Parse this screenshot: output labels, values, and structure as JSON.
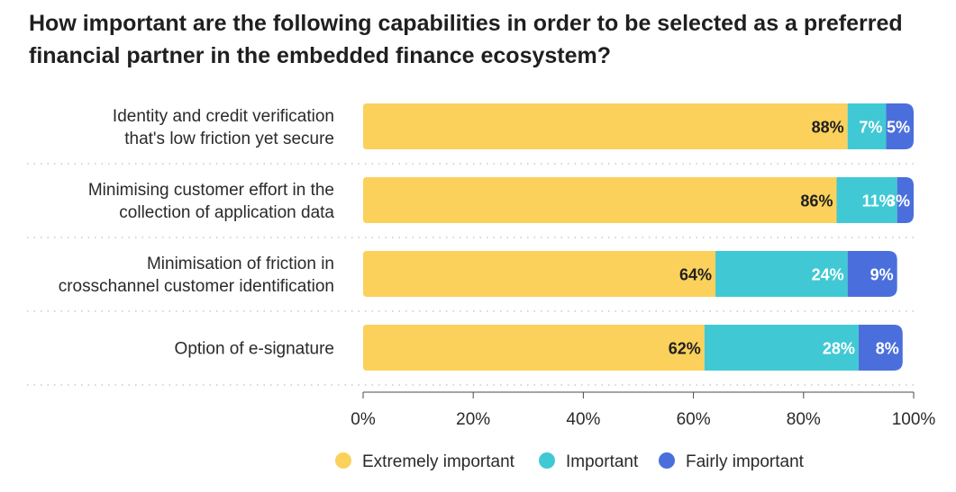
{
  "chart_data": {
    "type": "bar",
    "orientation": "horizontal",
    "stacked": true,
    "title": "How important are the following capabilities in order to be selected as a preferred financial partner in the embedded finance ecosystem?",
    "categories": [
      [
        "Identity and credit verification",
        "that's low friction yet secure"
      ],
      [
        "Minimising customer effort in the",
        "collection of application data"
      ],
      [
        "Minimisation of friction in",
        "crosschannel customer identification"
      ],
      [
        "Option of e-signature"
      ]
    ],
    "series": [
      {
        "name": "Extremely important",
        "color": "#fbd15b",
        "label_color": "#1f1f1f",
        "values": [
          88,
          86,
          64,
          62
        ]
      },
      {
        "name": "Important",
        "color": "#40c9d4",
        "label_color": "#ffffff",
        "values": [
          7,
          11,
          24,
          28
        ]
      },
      {
        "name": "Fairly important",
        "color": "#4a6fdc",
        "label_color": "#ffffff",
        "values": [
          5,
          3,
          9,
          8
        ]
      }
    ],
    "value_suffix": "%",
    "xlim": [
      0,
      100
    ],
    "x_ticks": [
      0,
      20,
      40,
      60,
      80,
      100
    ],
    "x_tick_labels": [
      "0%",
      "20%",
      "40%",
      "60%",
      "80%",
      "100%"
    ],
    "grid": false,
    "legend_position": "bottom"
  }
}
